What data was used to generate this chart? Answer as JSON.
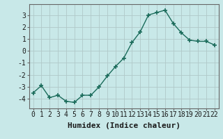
{
  "x": [
    0,
    1,
    2,
    3,
    4,
    5,
    6,
    7,
    8,
    9,
    10,
    11,
    12,
    13,
    14,
    15,
    16,
    17,
    18,
    19,
    20,
    21,
    22
  ],
  "y": [
    -3.5,
    -2.9,
    -3.9,
    -3.7,
    -4.2,
    -4.3,
    -3.7,
    -3.7,
    -3.0,
    -2.1,
    -1.3,
    -0.6,
    0.7,
    1.6,
    3.0,
    3.2,
    3.4,
    2.3,
    1.5,
    0.9,
    0.8,
    0.8,
    0.5
  ],
  "line_color": "#1a6b5a",
  "marker": "+",
  "marker_size": 4,
  "linewidth": 1.0,
  "background_color": "#c8e8e8",
  "grid_color": "#b0c8c8",
  "xlabel": "Humidex (Indice chaleur)",
  "xlabel_fontsize": 8,
  "ylim": [
    -4.8,
    3.9
  ],
  "xlim": [
    -0.5,
    22.5
  ],
  "yticks": [
    -4,
    -3,
    -2,
    -1,
    0,
    1,
    2,
    3
  ],
  "xtick_labels": [
    "0",
    "1",
    "2",
    "3",
    "4",
    "5",
    "6",
    "7",
    "8",
    "9",
    "10",
    "11",
    "12",
    "13",
    "14",
    "15",
    "16",
    "17",
    "18",
    "19",
    "20",
    "21",
    "22"
  ],
  "tick_fontsize": 7,
  "spine_color": "#666666"
}
